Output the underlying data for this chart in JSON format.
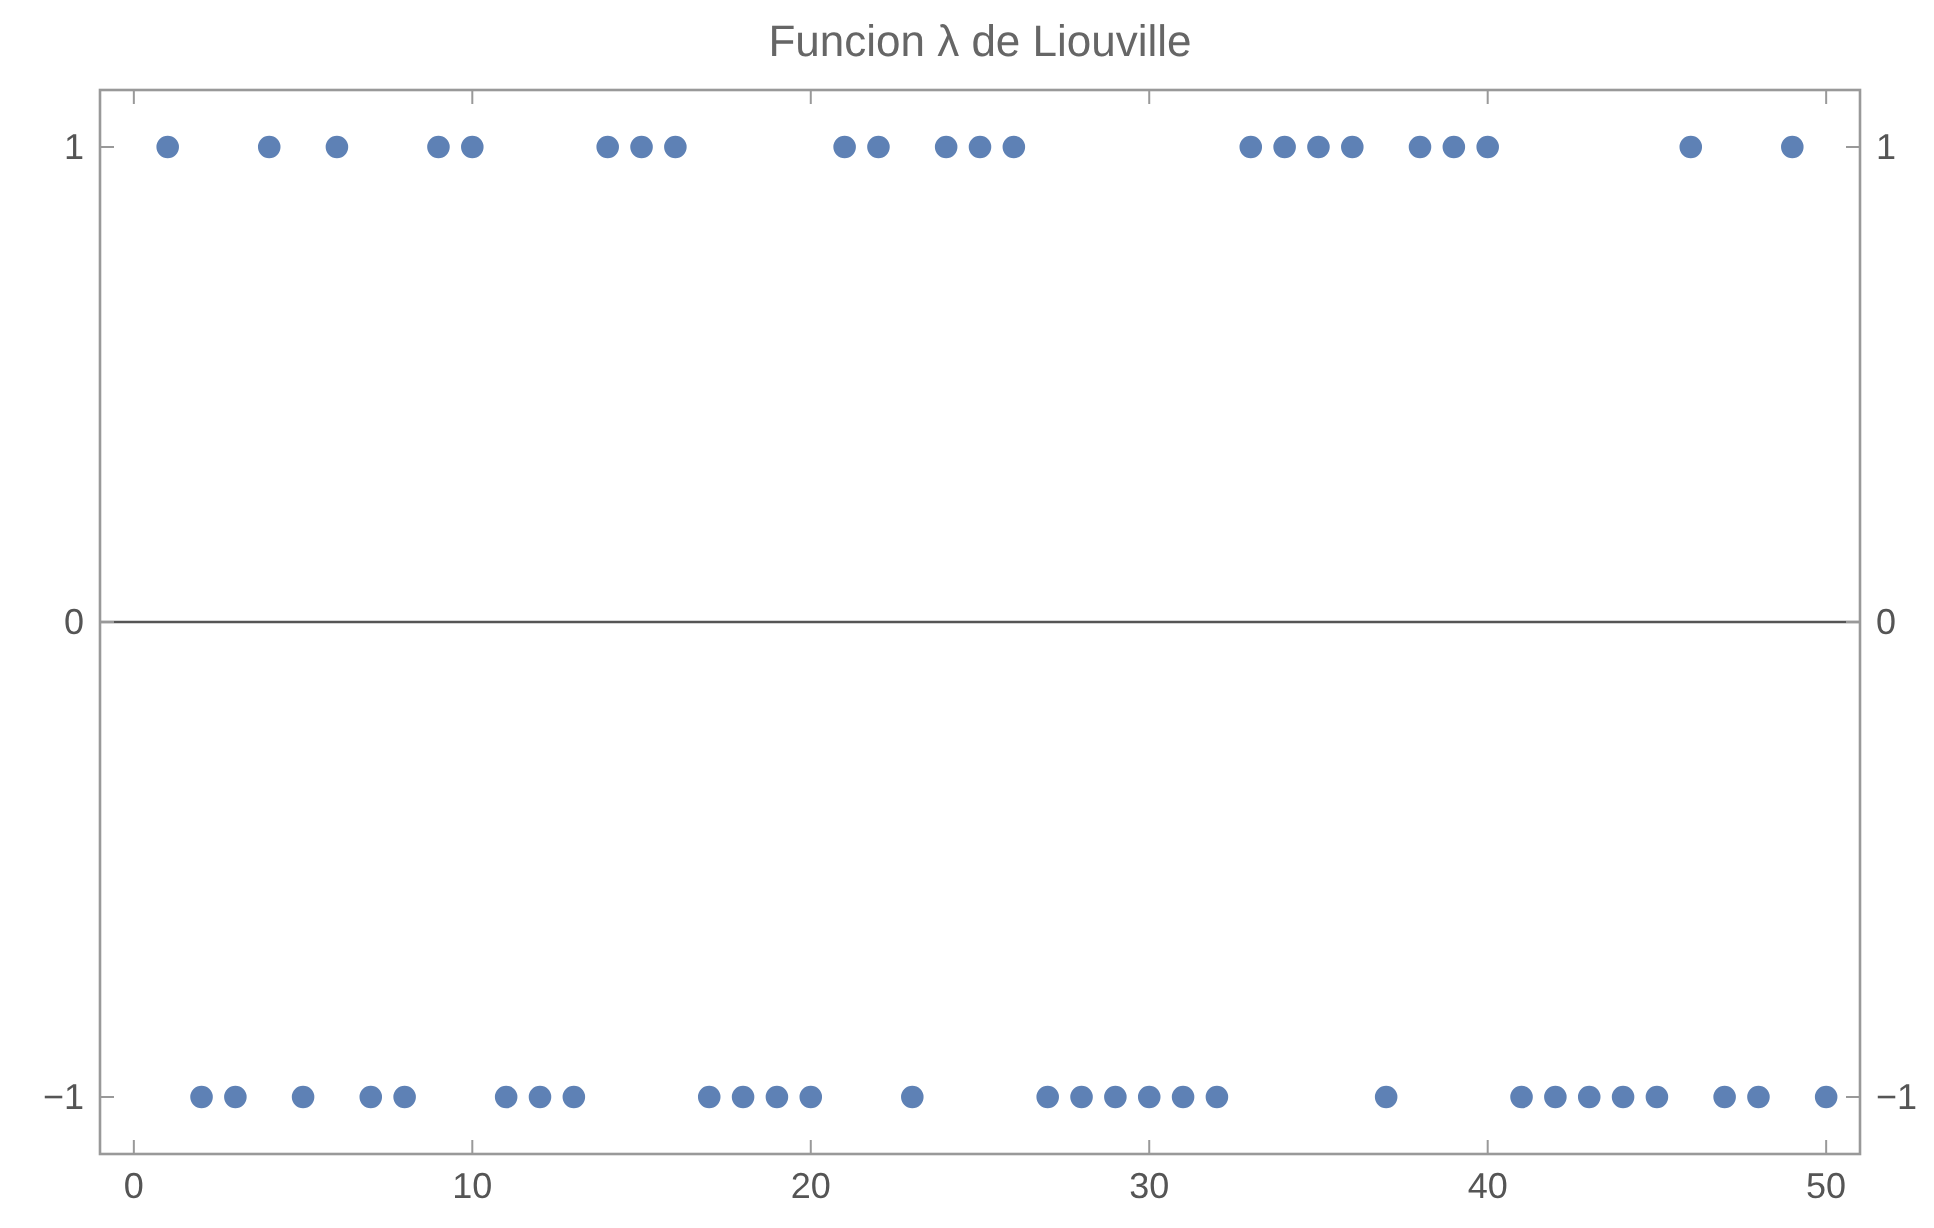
{
  "chart_data": {
    "type": "scatter",
    "title": "Funcion λ de Liouville",
    "x": [
      1,
      2,
      3,
      4,
      5,
      6,
      7,
      8,
      9,
      10,
      11,
      12,
      13,
      14,
      15,
      16,
      17,
      18,
      19,
      20,
      21,
      22,
      23,
      24,
      25,
      26,
      27,
      28,
      29,
      30,
      31,
      32,
      33,
      34,
      35,
      36,
      37,
      38,
      39,
      40,
      41,
      42,
      43,
      44,
      45,
      46,
      47,
      48,
      49,
      50
    ],
    "series": [
      {
        "color": "#5e81b5",
        "values": [
          1,
          -1,
          -1,
          1,
          -1,
          1,
          -1,
          -1,
          1,
          1,
          -1,
          -1,
          -1,
          1,
          1,
          1,
          -1,
          -1,
          -1,
          -1,
          1,
          1,
          -1,
          1,
          1,
          1,
          -1,
          -1,
          -1,
          -1,
          -1,
          -1,
          1,
          1,
          1,
          1,
          -1,
          1,
          1,
          1,
          -1,
          -1,
          -1,
          -1,
          -1,
          1,
          -1,
          -1,
          1,
          -1
        ]
      }
    ],
    "xlim": [
      -1,
      51
    ],
    "xticks": [
      0,
      10,
      20,
      30,
      40,
      50
    ],
    "ylim": [
      -1.12,
      1.12
    ],
    "yticks": [
      {
        "value": -1,
        "label": "−1"
      },
      0,
      1
    ],
    "y2lim": [
      -1.12,
      1.12
    ],
    "y2ticks": [
      {
        "value": -1,
        "label": "−1"
      },
      0,
      1
    ],
    "ref_lines": [
      {
        "axis": "y",
        "value": 0,
        "color": "#555555"
      }
    ],
    "marker": "circle",
    "grid": false
  }
}
